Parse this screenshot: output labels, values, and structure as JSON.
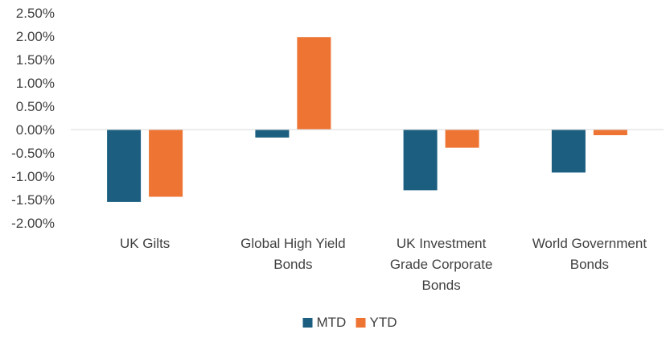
{
  "chart_data": {
    "type": "bar",
    "categories": [
      [
        "UK Gilts"
      ],
      [
        "Global High Yield",
        "Bonds"
      ],
      [
        "UK Investment",
        "Grade Corporate",
        "Bonds"
      ],
      [
        "World Government",
        "Bonds"
      ]
    ],
    "series": [
      {
        "name": "MTD",
        "color": "#1b5e80",
        "values": [
          -1.55,
          -0.17,
          -1.3,
          -0.92
        ]
      },
      {
        "name": "YTD",
        "color": "#ed7433",
        "values": [
          -1.44,
          1.98,
          -0.39,
          -0.12
        ]
      }
    ],
    "ylim": [
      -2.0,
      2.5
    ],
    "yticks": [
      "2.50%",
      "2.00%",
      "1.50%",
      "1.00%",
      "0.50%",
      "0.00%",
      "-0.50%",
      "-1.00%",
      "-1.50%",
      "-2.00%"
    ],
    "grid": false,
    "legend": "bottom"
  }
}
